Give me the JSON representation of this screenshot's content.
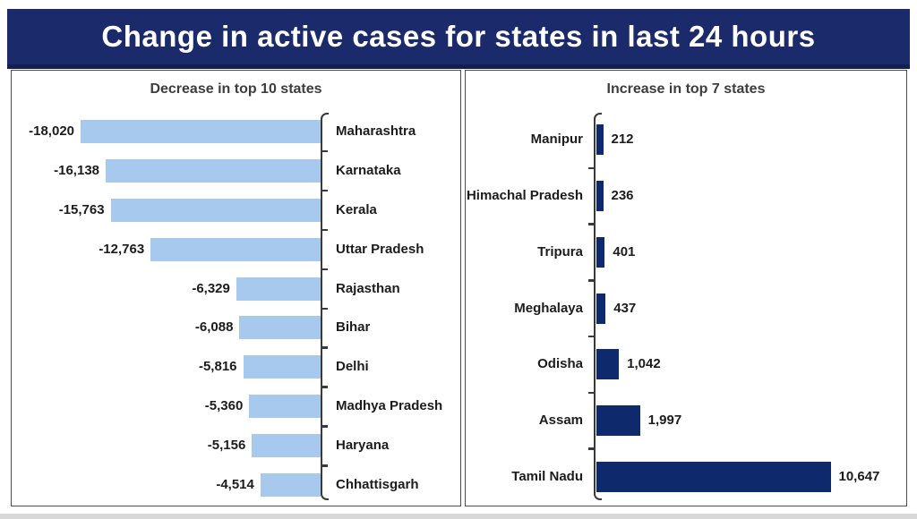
{
  "title": "Change in active cases for states in last 24 hours",
  "colors": {
    "title_bg": "#1b2a6a",
    "title_bg_dark": "#141f50",
    "title_text": "#ffffff",
    "decrease_bar": "#a6c9ed",
    "increase_bar": "#0e2a6c",
    "axis": "#3a3a3a",
    "panel_border": "#4d4d4d",
    "header_text": "#3d3d3d",
    "label_text": "#1c1c1c",
    "page_bg": "#ffffff",
    "bottom_strip": "#d8d8d8"
  },
  "chart_data": [
    {
      "type": "bar",
      "orientation": "horizontal",
      "direction": "left",
      "title": "Decrease in top 10 states",
      "categories": [
        "Maharashtra",
        "Karnataka",
        "Kerala",
        "Uttar Pradesh",
        "Rajasthan",
        "Bihar",
        "Delhi",
        "Madhya Pradesh",
        "Haryana",
        "Chhattisgarh"
      ],
      "values": [
        -18020,
        -16138,
        -15763,
        -12763,
        -6329,
        -6088,
        -5816,
        -5360,
        -5156,
        -4514
      ],
      "value_labels": [
        "-18,020",
        "-16,138",
        "-15,763",
        "-12,763",
        "-6,329",
        "-6,088",
        "-5,816",
        "-5,360",
        "-5,156",
        "-4,514"
      ],
      "xlim": [
        -18020,
        0
      ],
      "grid": false,
      "legend": false
    },
    {
      "type": "bar",
      "orientation": "horizontal",
      "direction": "right",
      "title": "Increase in top 7 states",
      "categories": [
        "Manipur",
        "Himachal Pradesh",
        "Tripura",
        "Meghalaya",
        "Odisha",
        "Assam",
        "Tamil Nadu"
      ],
      "values": [
        212,
        236,
        401,
        437,
        1042,
        1997,
        10647
      ],
      "value_labels": [
        "212",
        "236",
        "401",
        "437",
        "1,042",
        "1,997",
        "10,647"
      ],
      "xlim": [
        0,
        10647
      ],
      "grid": false,
      "legend": false
    }
  ]
}
